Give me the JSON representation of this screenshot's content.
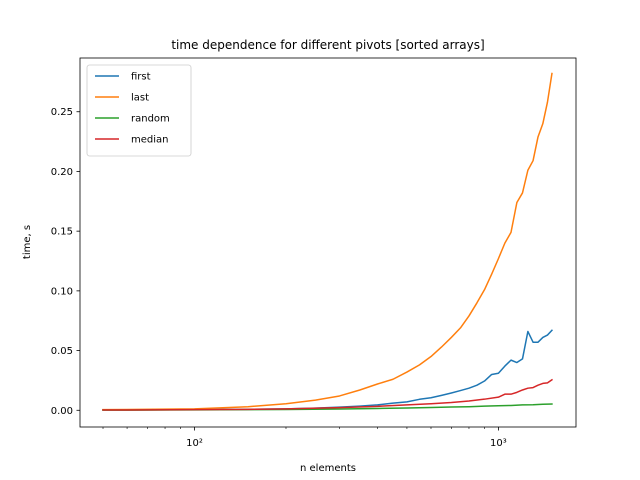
{
  "chart_data": {
    "type": "line",
    "title": "time dependence for different pivots [sorted arrays]",
    "xlabel": "n elements",
    "ylabel": "time, s",
    "xscale": "log",
    "xlim": [
      42,
      1800
    ],
    "ylim": [
      -0.014,
      0.295
    ],
    "x_major_ticks": [
      100,
      1000
    ],
    "x_tick_labels": [
      "10²",
      "10³"
    ],
    "y_ticks": [
      0.0,
      0.05,
      0.1,
      0.15,
      0.2,
      0.25
    ],
    "y_tick_labels": [
      "0.00",
      "0.05",
      "0.10",
      "0.15",
      "0.20",
      "0.25"
    ],
    "legend_position": "top-left",
    "grid": false,
    "series": [
      {
        "name": "first",
        "color": "#1f77b4",
        "points": [
          [
            50,
            0.0003
          ],
          [
            100,
            0.0005
          ],
          [
            150,
            0.0008
          ],
          [
            200,
            0.0012
          ],
          [
            250,
            0.0018
          ],
          [
            300,
            0.0026
          ],
          [
            350,
            0.0035
          ],
          [
            400,
            0.0045
          ],
          [
            450,
            0.006
          ],
          [
            500,
            0.007
          ],
          [
            550,
            0.0092
          ],
          [
            600,
            0.0105
          ],
          [
            650,
            0.0125
          ],
          [
            700,
            0.0145
          ],
          [
            750,
            0.0165
          ],
          [
            800,
            0.0185
          ],
          [
            850,
            0.021
          ],
          [
            900,
            0.0245
          ],
          [
            950,
            0.03
          ],
          [
            1000,
            0.031
          ],
          [
            1050,
            0.037
          ],
          [
            1100,
            0.042
          ],
          [
            1150,
            0.04
          ],
          [
            1200,
            0.043
          ],
          [
            1250,
            0.066
          ],
          [
            1300,
            0.057
          ],
          [
            1350,
            0.057
          ],
          [
            1400,
            0.061
          ],
          [
            1450,
            0.063
          ],
          [
            1500,
            0.067
          ]
        ]
      },
      {
        "name": "last",
        "color": "#ff7f0e",
        "points": [
          [
            50,
            0.0005
          ],
          [
            100,
            0.0012
          ],
          [
            150,
            0.003
          ],
          [
            200,
            0.0055
          ],
          [
            250,
            0.0085
          ],
          [
            300,
            0.012
          ],
          [
            350,
            0.017
          ],
          [
            400,
            0.022
          ],
          [
            450,
            0.026
          ],
          [
            500,
            0.032
          ],
          [
            550,
            0.038
          ],
          [
            600,
            0.045
          ],
          [
            650,
            0.053
          ],
          [
            700,
            0.061
          ],
          [
            750,
            0.069
          ],
          [
            800,
            0.079
          ],
          [
            850,
            0.09
          ],
          [
            900,
            0.101
          ],
          [
            950,
            0.114
          ],
          [
            1000,
            0.127
          ],
          [
            1050,
            0.14
          ],
          [
            1100,
            0.149
          ],
          [
            1150,
            0.174
          ],
          [
            1200,
            0.182
          ],
          [
            1250,
            0.201
          ],
          [
            1300,
            0.209
          ],
          [
            1350,
            0.229
          ],
          [
            1400,
            0.24
          ],
          [
            1450,
            0.258
          ],
          [
            1500,
            0.282
          ]
        ]
      },
      {
        "name": "random",
        "color": "#2ca02c",
        "points": [
          [
            50,
            0.0001
          ],
          [
            100,
            0.0003
          ],
          [
            150,
            0.0005
          ],
          [
            200,
            0.0007
          ],
          [
            300,
            0.0011
          ],
          [
            400,
            0.0015
          ],
          [
            500,
            0.0019
          ],
          [
            600,
            0.0023
          ],
          [
            700,
            0.0027
          ],
          [
            800,
            0.003
          ],
          [
            900,
            0.0035
          ],
          [
            1000,
            0.0038
          ],
          [
            1100,
            0.004
          ],
          [
            1200,
            0.0045
          ],
          [
            1300,
            0.0046
          ],
          [
            1400,
            0.005
          ],
          [
            1500,
            0.0052
          ]
        ]
      },
      {
        "name": "median",
        "color": "#d62728",
        "points": [
          [
            50,
            0.0002
          ],
          [
            100,
            0.0005
          ],
          [
            150,
            0.0008
          ],
          [
            200,
            0.0012
          ],
          [
            300,
            0.0022
          ],
          [
            400,
            0.0033
          ],
          [
            500,
            0.0045
          ],
          [
            600,
            0.0055
          ],
          [
            700,
            0.0065
          ],
          [
            800,
            0.0078
          ],
          [
            900,
            0.0093
          ],
          [
            1000,
            0.011
          ],
          [
            1050,
            0.0135
          ],
          [
            1100,
            0.0135
          ],
          [
            1150,
            0.015
          ],
          [
            1200,
            0.017
          ],
          [
            1250,
            0.0185
          ],
          [
            1300,
            0.019
          ],
          [
            1350,
            0.021
          ],
          [
            1400,
            0.0225
          ],
          [
            1450,
            0.023
          ],
          [
            1500,
            0.0255
          ]
        ]
      }
    ]
  }
}
